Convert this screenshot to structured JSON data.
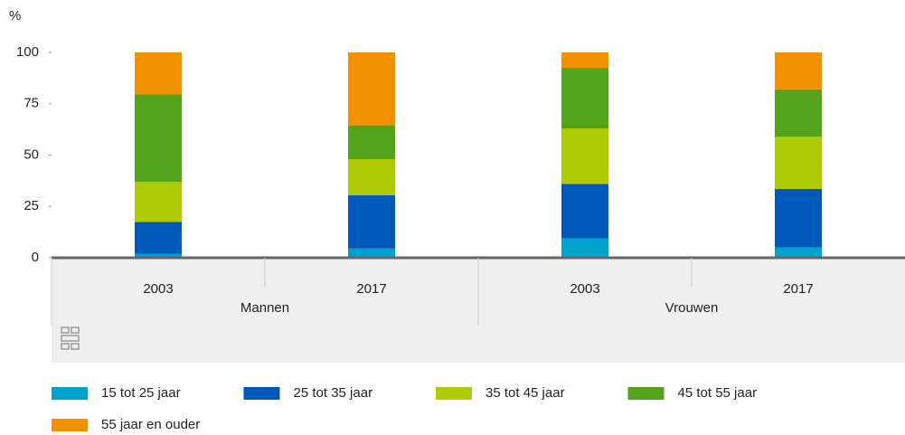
{
  "chart_data": {
    "type": "stacked-bar",
    "y_label": "%",
    "categories": [
      "2003",
      "2017",
      "2003",
      "2017"
    ],
    "groups": [
      "Mannen",
      "Vrouwen"
    ],
    "series": [
      {
        "name": "15 tot 25 jaar",
        "color": "#00a1cd",
        "values": [
          2,
          4.5,
          9.5,
          5
        ]
      },
      {
        "name": "25 tot 35 jaar",
        "color": "#0058b8",
        "values": [
          15.5,
          26,
          26.5,
          28.5
        ]
      },
      {
        "name": "35 tot 45 jaar",
        "color": "#afcb05",
        "values": [
          19.5,
          17.5,
          27,
          25.5
        ]
      },
      {
        "name": "45 tot 55 jaar",
        "color": "#53a31d",
        "values": [
          42.5,
          16.5,
          29.5,
          23
        ]
      },
      {
        "name": "55 jaar en ouder",
        "color": "#f39200",
        "values": [
          20.5,
          35.5,
          7.5,
          18
        ]
      }
    ],
    "ylim": [
      0,
      100
    ],
    "yticks": [
      0,
      25,
      50,
      75,
      100
    ],
    "grid": false
  }
}
